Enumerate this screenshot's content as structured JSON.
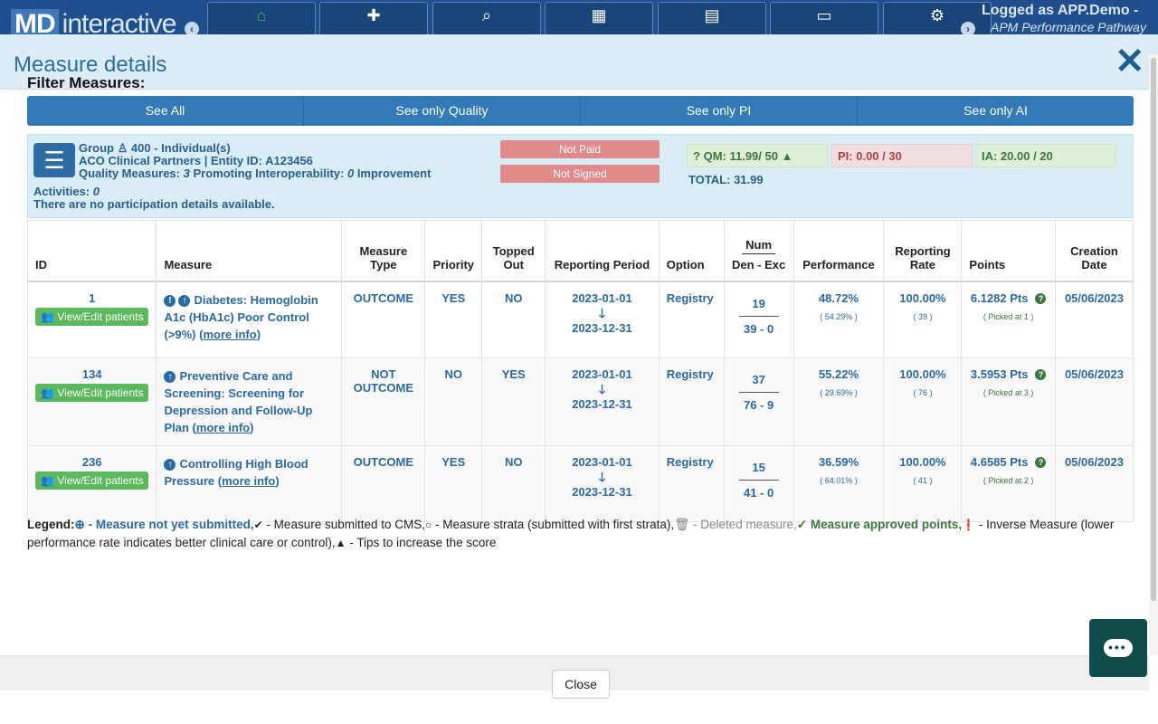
{
  "app": {
    "logo_md": "MD",
    "logo_rest": "interactive",
    "logged_as": "Logged as APP.Demo -",
    "program": "APM Performance Pathway",
    "nav_icons": [
      "home-icon",
      "plus-icon",
      "search-icon",
      "table-icon",
      "excel-icon",
      "archive-icon",
      "gears-icon"
    ]
  },
  "modal": {
    "title": "Measure details",
    "close_label": "Close"
  },
  "filters": {
    "title": "Filter Measures:",
    "buttons": [
      "See All",
      "See only Quality",
      "See only PI",
      "See only AI"
    ]
  },
  "group": {
    "line1": "Group",
    "line1_rest": "400 - Individual(s)",
    "line2": "ACO Clinical Partners | Entity ID: A123456",
    "line3_a": "Quality Measures:",
    "line3_b": "3",
    "line3_c": "Promoting Interoperability:",
    "line3_d": "0",
    "line3_e": "Improvement",
    "line4_a": "Activities:",
    "line4_b": "0",
    "line5": "There are no participation details available.",
    "badge_paid": "Not Paid",
    "badge_signed": "Not Signed",
    "qm": "QM: 11.99/ 50",
    "pi": "PI: 0.00 / 30",
    "ia": "IA: 20.00 / 20",
    "total": "TOTAL: 31.99"
  },
  "table": {
    "headers": {
      "id": "ID",
      "measure": "Measure",
      "type_1": "Measure",
      "type_2": "Type",
      "priority": "Priority",
      "topped_1": "Topped",
      "topped_2": "Out",
      "period": "Reporting Period",
      "option": "Option",
      "num": "Num",
      "den": "Den - Exc",
      "performance": "Performance",
      "rate_1": "Reporting",
      "rate_2": "Rate",
      "points": "Points",
      "created_1": "Creation",
      "created_2": "Date"
    },
    "view_label": "View/Edit patients",
    "more_info": "more info",
    "rows": [
      {
        "id": "1",
        "measure": "Diabetes: Hemoglobin A1c (HbA1c) Poor Control (>9%)",
        "type": "OUTCOME",
        "priority": "YES",
        "topped": "NO",
        "start": "2023-01-01",
        "end": "2023-12-31",
        "option": "Registry",
        "num": "19",
        "den": "39 - 0",
        "performance": "48.72%",
        "performance_sub": "( 54.29% )",
        "rate": "100.00%",
        "rate_sub": "( 39 )",
        "points": "6.1282 Pts",
        "points_sub": "( Picked at 1 )",
        "created": "05/06/2023"
      },
      {
        "id": "134",
        "measure": "Preventive Care and Screening: Screening for Depression and Follow-Up Plan",
        "type": "NOT OUTCOME",
        "priority": "NO",
        "topped": "YES",
        "start": "2023-01-01",
        "end": "2023-12-31",
        "option": "Registry",
        "num": "37",
        "den": "76 - 9",
        "performance": "55.22%",
        "performance_sub": "( 29.69% )",
        "rate": "100.00%",
        "rate_sub": "( 76 )",
        "points": "3.5953 Pts",
        "points_sub": "( Picked at 3 )",
        "created": "05/06/2023"
      },
      {
        "id": "236",
        "measure": "Controlling High Blood Pressure",
        "type": "OUTCOME",
        "priority": "YES",
        "topped": "NO",
        "start": "2023-01-01",
        "end": "2023-12-31",
        "option": "Registry",
        "num": "15",
        "den": "41 - 0",
        "performance": "36.59%",
        "performance_sub": "( 64.01% )",
        "rate": "100.00%",
        "rate_sub": "( 41 )",
        "points": "4.6585 Pts",
        "points_sub": "( Picked at 2 )",
        "created": "05/06/2023"
      }
    ]
  },
  "legend": {
    "label": "Legend:",
    "not_submitted": "- Measure not yet submitted,",
    "submitted": "- Measure submitted to CMS,",
    "strata": "- Measure strata (submitted with first strata),",
    "deleted": "- Deleted measure,",
    "approved": "Measure approved points,",
    "inverse": "- Inverse Measure (lower performance rate indicates better clinical care or control),",
    "tips": "- Tips to increase the score"
  }
}
